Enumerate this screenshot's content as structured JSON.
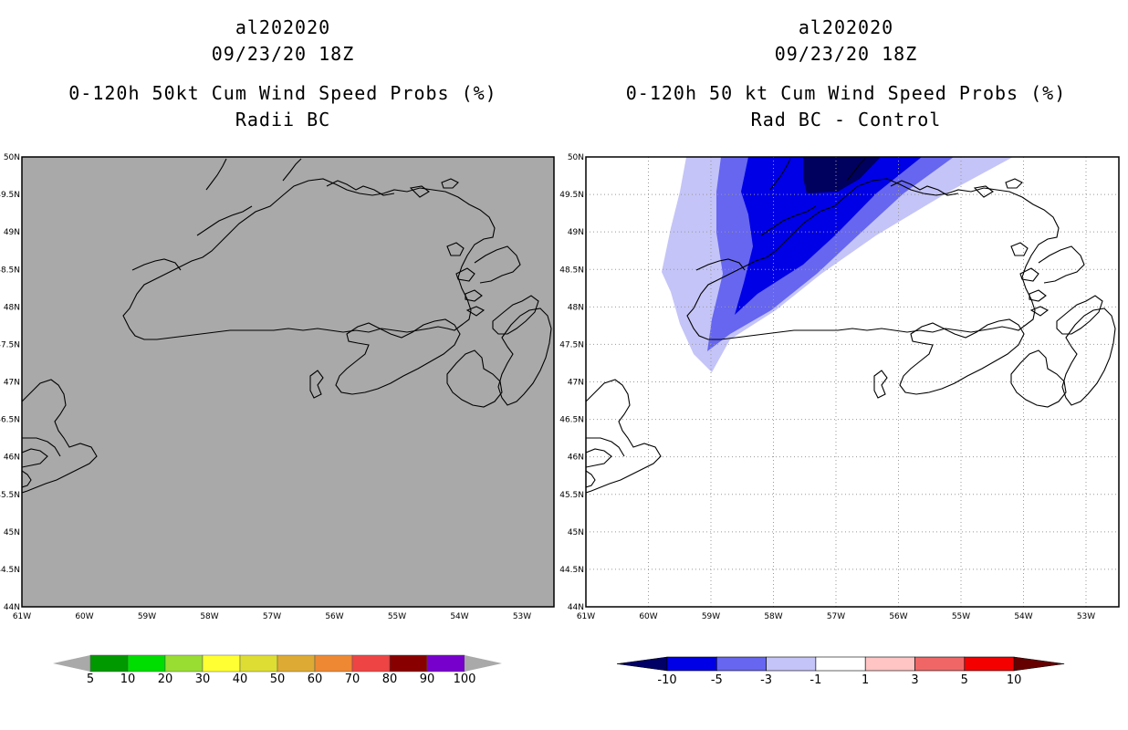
{
  "left_panel": {
    "title_lines": [
      "al202020",
      "09/23/20 18Z",
      "0-120h 50kt Cum Wind Speed Probs (%)",
      "Radii BC"
    ],
    "fill_color": "#a9a9a9",
    "lat_labels": [
      "50N",
      "49.5N",
      "49N",
      "48.5N",
      "48N",
      "47.5N",
      "47N",
      "46.5N",
      "46N",
      "45.5N",
      "45N",
      "44.5N",
      "44N"
    ],
    "lon_labels": [
      "61W",
      "60W",
      "59W",
      "58W",
      "57W",
      "56W",
      "55W",
      "54W",
      "53W"
    ],
    "colorbar": {
      "labels": [
        "5",
        "10",
        "20",
        "30",
        "40",
        "50",
        "60",
        "70",
        "80",
        "90",
        "100"
      ],
      "colors": [
        "#009900",
        "#00dd00",
        "#99dd33",
        "#ffff33",
        "#dddd33",
        "#ddaa33",
        "#ee8833",
        "#ee4444",
        "#880000",
        "#7700cc"
      ],
      "end_color": "#a9a9a9"
    }
  },
  "right_panel": {
    "title_lines": [
      "al202020",
      "09/23/20 18Z",
      "0-120h 50 kt Cum Wind Speed Probs (%)",
      "Rad BC - Control"
    ],
    "lat_labels": [
      "50N",
      "49.5N",
      "49N",
      "48.5N",
      "48N",
      "47.5N",
      "47N",
      "46.5N",
      "46N",
      "45.5N",
      "45N",
      "44.5N",
      "44N"
    ],
    "lon_labels": [
      "61W",
      "60W",
      "59W",
      "58W",
      "57W",
      "56W",
      "55W",
      "54W",
      "53W"
    ],
    "colorbar": {
      "labels": [
        "-10",
        "-5",
        "-3",
        "-1",
        "1",
        "3",
        "5",
        "10"
      ],
      "colors": [
        "#0000e6",
        "#6666f0",
        "#c4c4f8",
        "#ffffff",
        "#ffc4c4",
        "#f06666",
        "#f50000"
      ],
      "low_end_color": "#000066",
      "high_end_color": "#660000"
    },
    "contour_colors": {
      "lt_neg10": "#00005f",
      "neg10_to_neg5": "#0000e6",
      "neg5_to_neg3": "#6666f0",
      "neg3_to_neg1": "#c4c4f8"
    }
  }
}
